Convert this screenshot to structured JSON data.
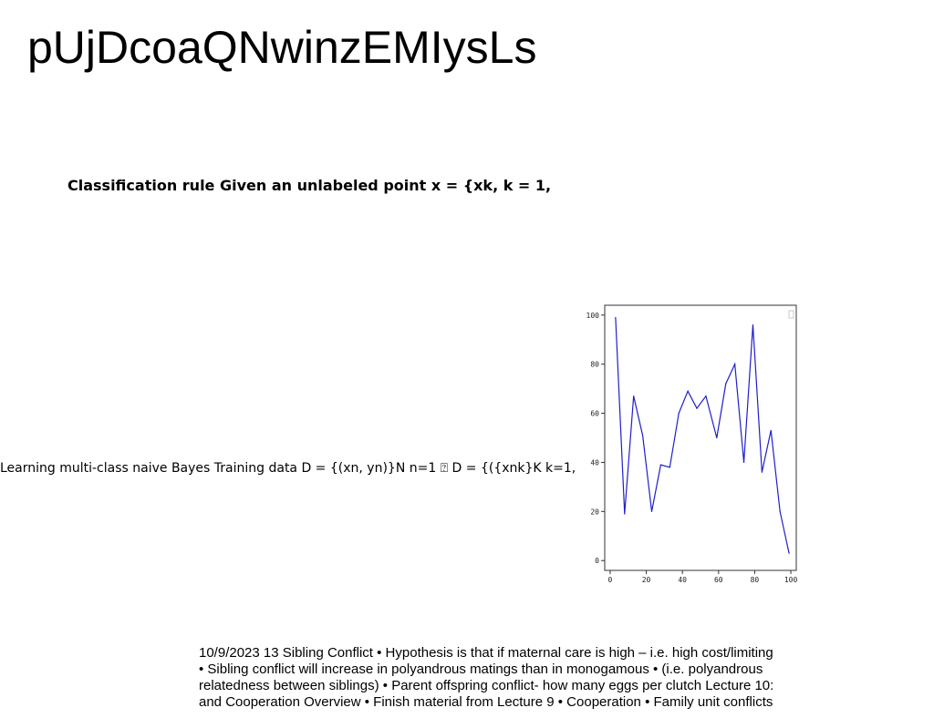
{
  "slide": {
    "title": "pUjDcoaQNwinzEMIysLs",
    "heading": "Classification rule Given an unlabeled point x = {xk, k = 1,",
    "learning_text": "Learning multi-class naive Bayes Training data D = {(xn, yn)}N n=1 ⍰ D = {({xnk}K k=1,",
    "bottom_lines": [
      "10/9/2023 13 Sibling Conflict • Hypothesis is that if maternal care is high – i.e. high cost/limiting",
      "• Sibling conflict will increase in polyandrous matings than in monogamous • (i.e. polyandrous",
      "relatedness between siblings) • Parent offspring conflict- how many eggs per clutch Lecture 10:",
      "and Cooperation Overview • Finish material from Lecture 9 • Cooperation • Family unit conflicts"
    ]
  },
  "chart_data": {
    "type": "line",
    "x": [
      3,
      8,
      13,
      18,
      23,
      28,
      33,
      38,
      43,
      48,
      53,
      59,
      64,
      69,
      74,
      79,
      84,
      89,
      94,
      99
    ],
    "series": [
      {
        "values": [
          99,
          19,
          67,
          51,
          20,
          39,
          38,
          60,
          69,
          62,
          67,
          50,
          72,
          80,
          40,
          96,
          36,
          53,
          20,
          3
        ],
        "color": "#1f1fcc"
      }
    ],
    "xlim": [
      -3,
      103
    ],
    "ylim": [
      -4,
      104
    ],
    "xticks": [
      "0",
      "20",
      "40",
      "60",
      "80",
      "100"
    ],
    "yticks": [
      "0",
      "20",
      "40",
      "60",
      "80",
      "100"
    ],
    "grid": false,
    "axis_color": "#333333"
  }
}
